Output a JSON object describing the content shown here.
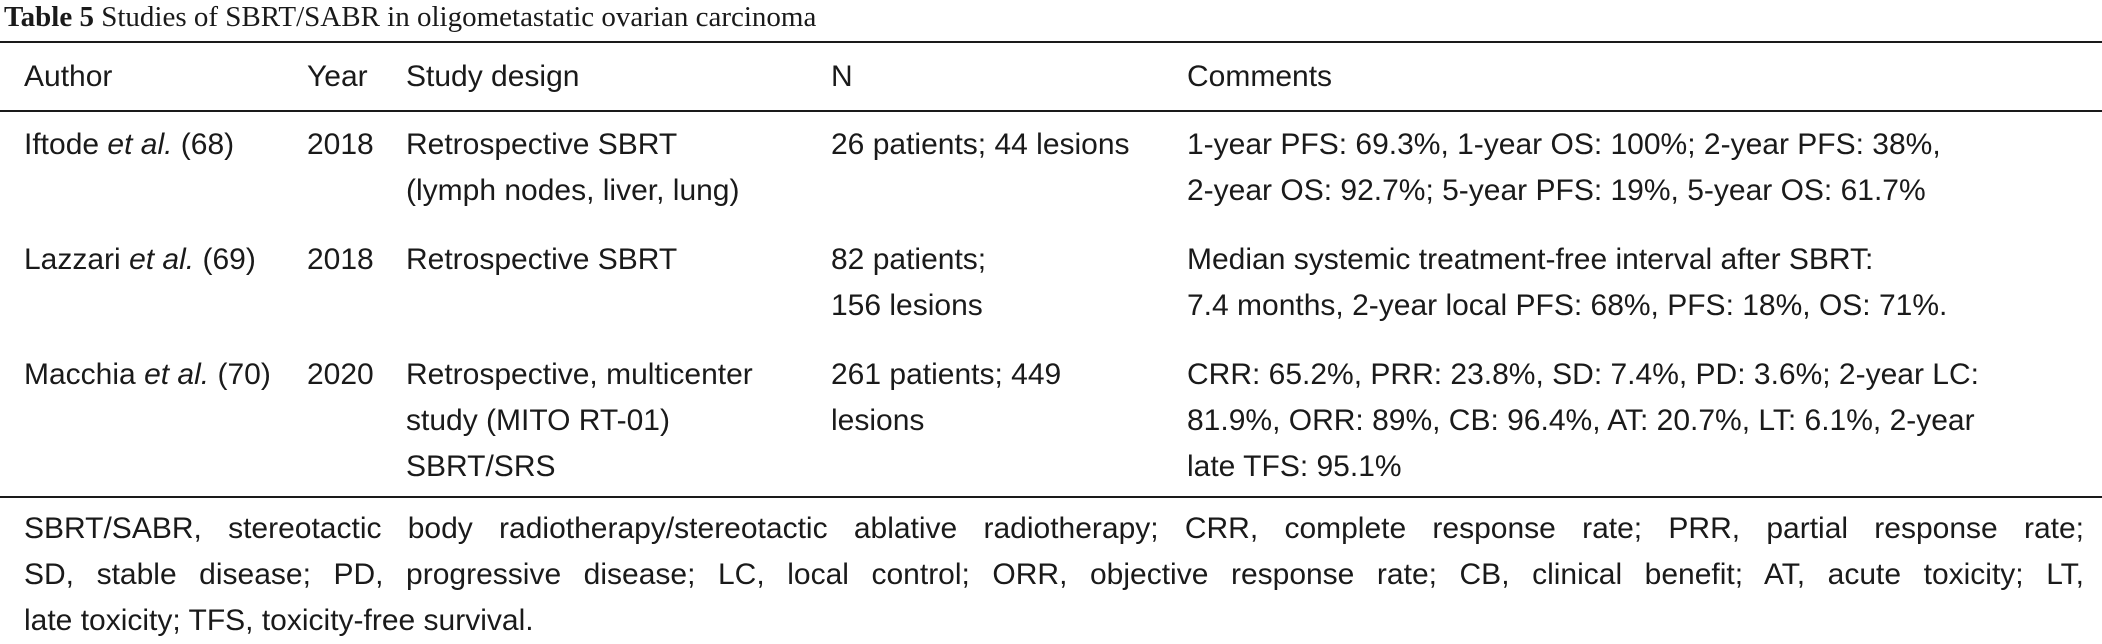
{
  "caption": {
    "label": "Table 5",
    "title": "Studies of SBRT/SABR in oligometastatic ovarian carcinoma"
  },
  "table": {
    "headers": {
      "author": "Author",
      "year": "Year",
      "design": "Study design",
      "n": "N",
      "comments": "Comments"
    },
    "rows": [
      {
        "author_name": "Iftode",
        "author_etal": "et al.",
        "author_ref": "(68)",
        "year": "2018",
        "design": [
          "Retrospective SBRT",
          "(lymph nodes, liver, lung)"
        ],
        "n": [
          "26 patients; 44 lesions"
        ],
        "comments": [
          "1-year PFS: 69.3%, 1-year OS: 100%; 2-year PFS: 38%,",
          "2-year OS: 92.7%; 5-year PFS: 19%, 5-year OS: 61.7%"
        ]
      },
      {
        "author_name": "Lazzari",
        "author_etal": "et al.",
        "author_ref": "(69)",
        "year": "2018",
        "design": [
          "Retrospective SBRT"
        ],
        "n": [
          "82 patients;",
          "156 lesions"
        ],
        "comments": [
          "Median systemic treatment-free interval after SBRT:",
          "7.4 months, 2-year local PFS: 68%, PFS: 18%, OS: 71%."
        ]
      },
      {
        "author_name": "Macchia",
        "author_etal": "et al.",
        "author_ref": "(70)",
        "year": "2020",
        "design": [
          "Retrospective, multicenter",
          "study (MITO RT-01)",
          "SBRT/SRS"
        ],
        "n": [
          "261 patients; 449",
          "lesions"
        ],
        "comments": [
          "CRR: 65.2%, PRR: 23.8%, SD: 7.4%, PD: 3.6%; 2-year LC:",
          "81.9%, ORR: 89%, CB: 96.4%, AT: 20.7%, LT: 6.1%, 2-year",
          "late TFS: 95.1%"
        ]
      }
    ]
  },
  "footnote": [
    "SBRT/SABR, stereotactic body radiotherapy/stereotactic ablative radiotherapy; CRR, complete response rate; PRR, partial response rate;",
    "SD, stable disease; PD, progressive disease; LC, local control; ORR, objective response rate; CB, clinical benefit; AT, acute toxicity; LT,",
    "late toxicity; TFS, toxicity-free survival."
  ]
}
